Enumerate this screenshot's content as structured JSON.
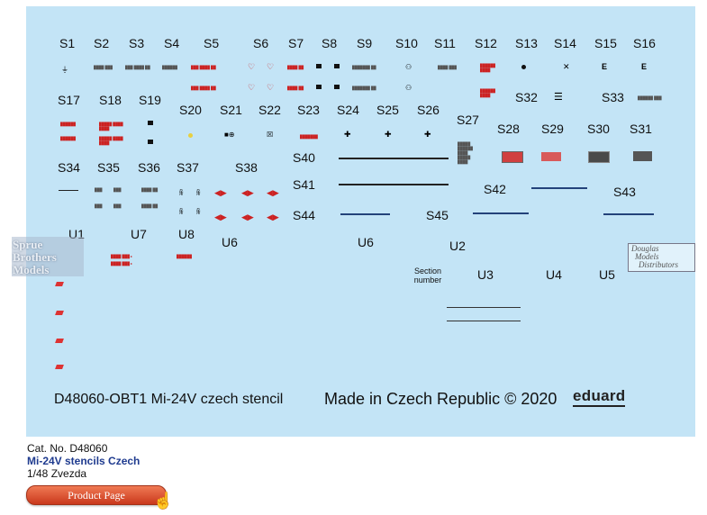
{
  "sheet": {
    "labels": [
      "S1",
      "S2",
      "S3",
      "S4",
      "S5",
      "S6",
      "S7",
      "S8",
      "S9",
      "S10",
      "S11",
      "S12",
      "S13",
      "S14",
      "S15",
      "S16",
      "S17",
      "S18",
      "S19",
      "S20",
      "S21",
      "S22",
      "S23",
      "S24",
      "S25",
      "S26",
      "S27",
      "S28",
      "S29",
      "S30",
      "S31",
      "S32",
      "S33",
      "S34",
      "S35",
      "S36",
      "S37",
      "S38",
      "S40",
      "S41",
      "S42",
      "S43",
      "S44",
      "S45",
      "U1",
      "U7",
      "U8",
      "U6",
      "U6",
      "U2",
      "U3",
      "U4",
      "U5"
    ],
    "section_label": "Section number",
    "footer_title": "D48060-OBT1 Mi-24V czech stencil",
    "footer_made": "Made in Czech Republic © 2020",
    "brand": "eduard"
  },
  "watermarks": {
    "sbm_line1": "Sprue",
    "sbm_line2": "Brothers",
    "sbm_line3": "Models",
    "dmd_line1": "Douglas",
    "dmd_line2": "Models",
    "dmd_line3": "Distributors"
  },
  "product": {
    "cat_no": "Cat. No. D48060",
    "name": "Mi-24V stencils Czech",
    "scale": "1/48  Zvezda",
    "button_label": "Product Page"
  },
  "colors": {
    "sheet_bg": "#c3e4f6",
    "stencil_red": "#cc2020",
    "stencil_blue": "#23427a",
    "name_blue": "#1f3b8f",
    "button": "#e0562f"
  }
}
